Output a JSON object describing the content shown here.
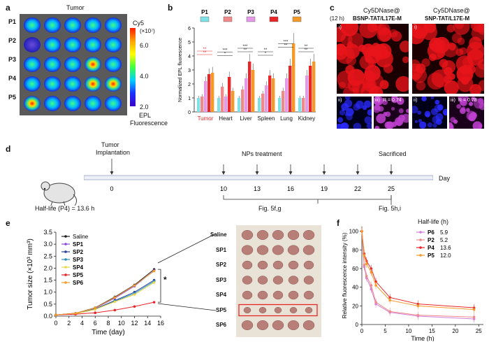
{
  "panels": {
    "a": {
      "letter": "a",
      "title": "Tumor",
      "rows": [
        "P1",
        "P2",
        "P3",
        "P4",
        "P5"
      ],
      "colorbar": {
        "title": "Cy5",
        "exp": "(×10⁷)",
        "ticks": [
          "6.0",
          "4.0",
          "2.0"
        ],
        "label1": "EPL",
        "label2": "Fluorescence"
      }
    },
    "b": {
      "letter": "b",
      "legend": [
        "P1",
        "P2",
        "P3",
        "P4",
        "P5"
      ],
      "colors": [
        "#7fe0e6",
        "#f08a8a",
        "#e59ae8",
        "#e8262a",
        "#f39a2a"
      ]
    },
    "c": {
      "letter": "c",
      "time": "(12 h)",
      "col1_line1": "Cy5DNase@",
      "col1_line2": "BSNP-TAT/L17E-M",
      "col2_line1": "Cy5DNase@",
      "col2_line2": "SNP-TAT/L17E-M",
      "sub_i": "i)",
      "sub_ii": "ii)",
      "sub_iii": "iii)",
      "r1": "R = 0.74",
      "r2": "R = 0.78"
    },
    "d": {
      "letter": "d",
      "tumor_label1": "Tumor",
      "tumor_label2": "Implantation",
      "treatment": "NPs treatment",
      "sacrificed": "Sacrificed",
      "day_label": "Day",
      "days": [
        "0",
        "10",
        "13",
        "16",
        "19",
        "22",
        "25"
      ],
      "halflife": "Half-life (P4) = 13.6 h",
      "fig1": "Fig. 5f,g",
      "fig2": "Fig. 5h,i"
    },
    "e": {
      "letter": "e",
      "photo_rows": [
        "Saline",
        "SP1",
        "SP2",
        "SP3",
        "SP4",
        "SP5",
        "SP6"
      ],
      "star": "*"
    },
    "f": {
      "letter": "f",
      "legend_title": "Half-life (h)"
    }
  },
  "chart_data": [
    {
      "id": "b",
      "type": "bar",
      "title": "",
      "ylabel": "Normalized EPL fluorescence",
      "categories": [
        "Tumor",
        "Heart",
        "Liver",
        "Spleen",
        "Lung",
        "Kidney"
      ],
      "ylim": [
        0,
        6
      ],
      "yticks": [
        "0",
        "1",
        "2",
        "3",
        "4",
        "5",
        "6"
      ],
      "sig_labels": [
        "**",
        "**",
        "*",
        "***",
        "**",
        "***",
        "*",
        "**",
        "**",
        "***",
        "**",
        "**",
        "*",
        "**",
        "**"
      ],
      "series": [
        {
          "name": "P1",
          "values": [
            1.0,
            1.0,
            1.0,
            1.0,
            1.0,
            1.0
          ]
        },
        {
          "name": "P2",
          "values": [
            1.1,
            1.8,
            1.6,
            1.3,
            1.5,
            1.0
          ]
        },
        {
          "name": "P3",
          "values": [
            2.2,
            1.1,
            2.4,
            1.9,
            2.4,
            2.6
          ]
        },
        {
          "name": "P4",
          "values": [
            2.7,
            2.5,
            3.6,
            2.6,
            3.3,
            3.3
          ]
        },
        {
          "name": "P5",
          "values": [
            2.8,
            1.5,
            3.0,
            2.4,
            4.9,
            3.6
          ]
        }
      ]
    },
    {
      "id": "e",
      "type": "line",
      "xlabel": "Time (day)",
      "ylabel": "Tumor size (×10³ mm³)",
      "x": [
        0,
        3,
        6,
        9,
        12,
        15
      ],
      "xticks": [
        "0",
        "2",
        "4",
        "6",
        "8",
        "10",
        "12",
        "14",
        "16"
      ],
      "yticks": [
        "0.0",
        "0.5",
        "1.0",
        "1.5",
        "2.0",
        "2.5",
        "3.0",
        "3.5"
      ],
      "xlim": [
        0,
        16
      ],
      "ylim": [
        0,
        3.5
      ],
      "series": [
        {
          "name": "Saline",
          "color": "#222222",
          "values": [
            0.05,
            0.12,
            0.35,
            0.8,
            1.3,
            1.95
          ]
        },
        {
          "name": "SP1",
          "color": "#8a4bd8",
          "values": [
            0.05,
            0.12,
            0.33,
            0.75,
            1.25,
            1.9
          ]
        },
        {
          "name": "SP2",
          "color": "#2a3fa0",
          "values": [
            0.05,
            0.11,
            0.3,
            0.65,
            1.0,
            1.5
          ]
        },
        {
          "name": "SP3",
          "color": "#2b8fb5",
          "values": [
            0.05,
            0.1,
            0.28,
            0.62,
            0.95,
            1.45
          ]
        },
        {
          "name": "SP4",
          "color": "#e8d84a",
          "values": [
            0.05,
            0.1,
            0.28,
            0.6,
            0.9,
            1.4
          ]
        },
        {
          "name": "SP5",
          "color": "#e8262a",
          "values": [
            0.05,
            0.08,
            0.14,
            0.25,
            0.4,
            0.58
          ]
        },
        {
          "name": "SP6",
          "color": "#f39a2a",
          "values": [
            0.05,
            0.12,
            0.34,
            0.78,
            1.28,
            1.88
          ]
        }
      ]
    },
    {
      "id": "f",
      "type": "line",
      "xlabel": "Time (h)",
      "ylabel": "Relative fluorescence intensity (%)",
      "x": [
        0,
        0.5,
        1,
        2,
        3,
        6,
        12,
        24
      ],
      "xticks": [
        "0",
        "5",
        "10",
        "15",
        "20",
        "25"
      ],
      "yticks": [
        "0",
        "20",
        "40",
        "60",
        "80",
        "100"
      ],
      "xlim": [
        0,
        26
      ],
      "ylim": [
        0,
        105
      ],
      "series": [
        {
          "name": "P6",
          "halflife": "5.9",
          "color": "#d27fd8",
          "values": [
            100,
            62,
            50,
            38,
            22,
            13,
            9,
            6
          ]
        },
        {
          "name": "P2",
          "halflife": "5.2",
          "color": "#f08a8a",
          "values": [
            100,
            64,
            52,
            42,
            24,
            14,
            10,
            8
          ]
        },
        {
          "name": "P4",
          "halflife": "13.6",
          "color": "#e8262a",
          "values": [
            100,
            76,
            68,
            60,
            46,
            29,
            22,
            18
          ]
        },
        {
          "name": "P5",
          "halflife": "12.0",
          "color": "#f39a2a",
          "values": [
            100,
            74,
            65,
            56,
            42,
            26,
            20,
            16
          ]
        }
      ]
    }
  ]
}
